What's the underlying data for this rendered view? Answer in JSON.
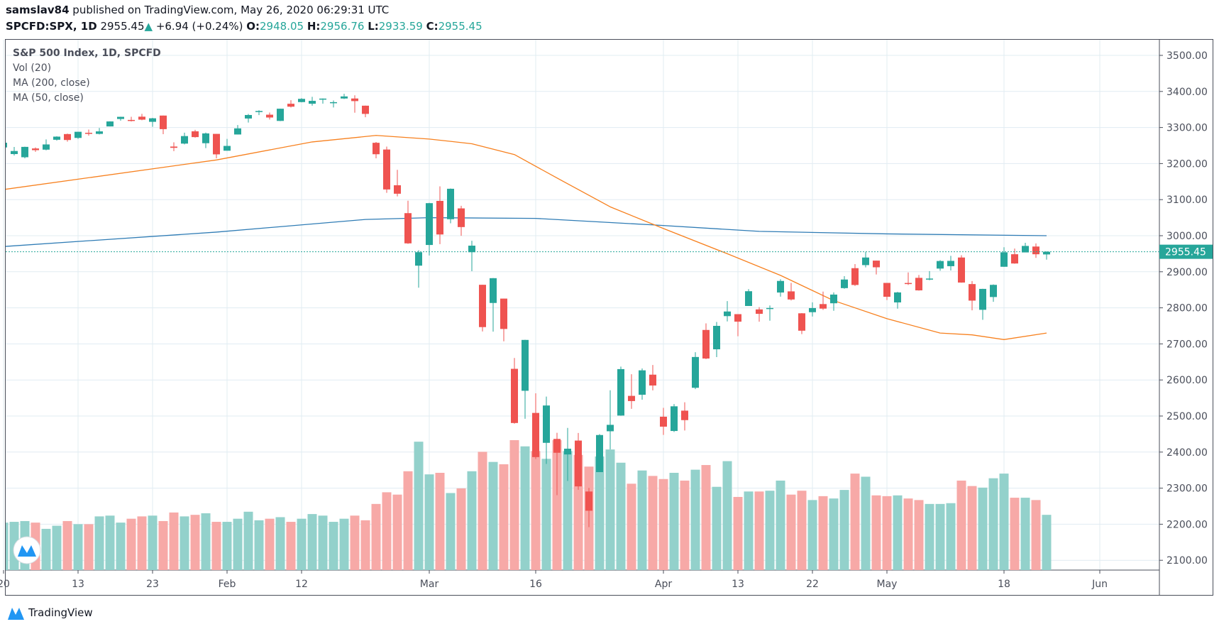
{
  "header": {
    "author": "samslav84",
    "published": " published on TradingView.com, May 26, 2020 06:29:31 UTC",
    "symbol": "SPCFD:SPX, 1D",
    "last": "2955.45",
    "change_icon": "triangle-up-icon",
    "change": "+6.94 (+0.24%)",
    "o_label": "O:",
    "o": "2948.05",
    "h_label": "H:",
    "h": "2956.76",
    "l_label": "L:",
    "l": "2933.59",
    "c_label": "C:",
    "c": "2955.45"
  },
  "legend": {
    "title": "S&P 500 Index, 1D, SPCFD",
    "vol": "Vol (20)",
    "ma200": "MA (200, close)",
    "ma50": "MA (50, close)"
  },
  "brand": {
    "name": "TradingView"
  },
  "colors": {
    "up": "#26a69a",
    "down": "#ef5350",
    "vol_up": "#93d1cb",
    "vol_down": "#f7a9a7",
    "ma200": "#2f7cb5",
    "ma50": "#f7801e",
    "grid": "#e1ecf2"
  },
  "chart_data": {
    "type": "candlestick",
    "title": "S&P 500 Index, 1D, SPCFD",
    "ylim": [
      2070,
      3560
    ],
    "y_ticks": [
      "3500.00",
      "3400.00",
      "3300.00",
      "3200.00",
      "3100.00",
      "3000.00",
      "2900.00",
      "2800.00",
      "2700.00",
      "2600.00",
      "2500.00",
      "2400.00",
      "2300.00",
      "2200.00",
      "2100.00"
    ],
    "last_price_label": "2955.45",
    "last_price": 2955.45,
    "x_labels": [
      {
        "label": "20",
        "date": "2020-01-02"
      },
      {
        "label": "13",
        "date": "2020-01-13"
      },
      {
        "label": "23",
        "date": "2020-01-23"
      },
      {
        "label": "Feb",
        "date": "2020-02-03"
      },
      {
        "label": "12",
        "date": "2020-02-12"
      },
      {
        "label": "Mar",
        "date": "2020-03-02"
      },
      {
        "label": "16",
        "date": "2020-03-16"
      },
      {
        "label": "Apr",
        "date": "2020-04-01"
      },
      {
        "label": "13",
        "date": "2020-04-13"
      },
      {
        "label": "22",
        "date": "2020-04-22"
      },
      {
        "label": "May",
        "date": "2020-05-01"
      },
      {
        "label": "18",
        "date": "2020-05-18"
      },
      {
        "label": "Jun",
        "date": "2020-06-01"
      }
    ],
    "bar_fields": [
      "date",
      "open",
      "high",
      "low",
      "close",
      "volume_relative"
    ],
    "bars": [
      [
        "2020-01-02",
        3244.67,
        3258.14,
        3235.53,
        3257.85,
        61
      ],
      [
        "2020-01-03",
        3226.36,
        3246.15,
        3222.34,
        3234.85,
        62
      ],
      [
        "2020-01-06",
        3217.55,
        3246.84,
        3214.64,
        3246.28,
        63
      ],
      [
        "2020-01-07",
        3241.86,
        3244.91,
        3232.43,
        3237.18,
        61
      ],
      [
        "2020-01-08",
        3238.59,
        3267.07,
        3236.67,
        3253.05,
        53
      ],
      [
        "2020-01-09",
        3266.03,
        3275.58,
        3263.67,
        3274.7,
        57
      ],
      [
        "2020-01-10",
        3281.81,
        3282.99,
        3260.86,
        3265.35,
        63
      ],
      [
        "2020-01-13",
        3271.13,
        3288.13,
        3268.43,
        3288.13,
        59
      ],
      [
        "2020-01-14",
        3285.35,
        3294.25,
        3277.19,
        3283.15,
        59
      ],
      [
        "2020-01-15",
        3282.27,
        3298.66,
        3280.69,
        3289.29,
        69
      ],
      [
        "2020-01-16",
        3302.97,
        3317.11,
        3302.82,
        3316.81,
        70
      ],
      [
        "2020-01-17",
        3323.66,
        3329.88,
        3318.86,
        3329.62,
        61
      ],
      [
        "2020-01-21",
        3321.03,
        3329.79,
        3316.61,
        3320.79,
        66
      ],
      [
        "2020-01-22",
        3330.02,
        3337.77,
        3320.04,
        3321.75,
        69
      ],
      [
        "2020-01-23",
        3315.77,
        3326.88,
        3301.87,
        3325.54,
        70
      ],
      [
        "2020-01-24",
        3333.1,
        3333.18,
        3281.53,
        3295.47,
        63
      ],
      [
        "2020-01-27",
        3247.16,
        3258.85,
        3234.5,
        3243.63,
        74
      ],
      [
        "2020-01-28",
        3255.35,
        3285.78,
        3253.22,
        3276.24,
        69
      ],
      [
        "2020-01-29",
        3289.46,
        3293.47,
        3271.89,
        3273.4,
        71
      ],
      [
        "2020-01-30",
        3256.45,
        3285.91,
        3242.8,
        3283.66,
        73
      ],
      [
        "2020-01-31",
        3282.33,
        3282.33,
        3214.68,
        3225.52,
        62
      ],
      [
        "2020-02-03",
        3235.66,
        3268.44,
        3235.66,
        3248.92,
        62
      ],
      [
        "2020-02-04",
        3280.61,
        3306.92,
        3280.61,
        3297.59,
        66
      ],
      [
        "2020-02-05",
        3324.91,
        3337.58,
        3313.75,
        3334.69,
        75
      ],
      [
        "2020-02-06",
        3344.92,
        3347.96,
        3334.39,
        3345.78,
        64
      ],
      [
        "2020-02-07",
        3335.54,
        3341.42,
        3322.12,
        3327.71,
        66
      ],
      [
        "2020-02-10",
        3318.28,
        3352.26,
        3317.77,
        3352.09,
        68
      ],
      [
        "2020-02-11",
        3365.87,
        3375.63,
        3355.61,
        3357.75,
        62
      ],
      [
        "2020-02-12",
        3370.5,
        3381.47,
        3369.72,
        3379.45,
        66
      ],
      [
        "2020-02-13",
        3365.9,
        3385.09,
        3360.52,
        3373.94,
        72
      ],
      [
        "2020-02-14",
        3378.08,
        3380.69,
        3366.15,
        3380.16,
        70
      ],
      [
        "2020-02-18",
        3369.04,
        3375.01,
        3355.61,
        3370.29,
        62
      ],
      [
        "2020-02-19",
        3380.39,
        3393.52,
        3378.83,
        3386.15,
        66
      ],
      [
        "2020-02-20",
        3380.45,
        3389.15,
        3341.02,
        3373.23,
        70
      ],
      [
        "2020-02-21",
        3360.5,
        3360.76,
        3328.45,
        3337.75,
        64
      ],
      [
        "2020-02-24",
        3257.61,
        3259.81,
        3214.65,
        3225.89,
        85
      ],
      [
        "2020-02-25",
        3238.94,
        3246.99,
        3118.77,
        3128.21,
        100
      ],
      [
        "2020-02-26",
        3139.9,
        3182.51,
        3108.99,
        3116.39,
        97
      ],
      [
        "2020-02-27",
        3062.54,
        3097.07,
        2977.39,
        2978.76,
        127
      ],
      [
        "2020-02-28",
        2916.9,
        2959.72,
        2855.84,
        2954.22,
        165
      ],
      [
        "2020-03-02",
        2974.28,
        3090.96,
        2945.19,
        3090.23,
        123
      ],
      [
        "2020-03-03",
        3096.46,
        3136.72,
        2976.63,
        3003.37,
        125
      ],
      [
        "2020-03-04",
        3045.75,
        3130.97,
        3034.38,
        3130.12,
        99
      ],
      [
        "2020-03-05",
        3075.7,
        3083.04,
        2999.83,
        3023.94,
        105
      ],
      [
        "2020-03-06",
        2954.2,
        2985.93,
        2901.54,
        2972.37,
        127
      ],
      [
        "2020-03-09",
        2863.89,
        2863.89,
        2734.43,
        2746.56,
        152
      ],
      [
        "2020-03-10",
        2813.48,
        2882.59,
        2734.0,
        2882.23,
        139
      ],
      [
        "2020-03-11",
        2825.6,
        2825.6,
        2707.22,
        2741.38,
        136
      ],
      [
        "2020-03-12",
        2630.86,
        2660.95,
        2478.86,
        2480.64,
        167
      ],
      [
        "2020-03-13",
        2569.99,
        2711.33,
        2492.37,
        2711.02,
        159
      ],
      [
        "2020-03-16",
        2508.59,
        2562.98,
        2380.94,
        2386.13,
        153
      ],
      [
        "2020-03-17",
        2425.66,
        2553.93,
        2367.04,
        2529.19,
        143
      ],
      [
        "2020-03-18",
        2436.5,
        2453.57,
        2280.52,
        2398.1,
        167
      ],
      [
        "2020-03-19",
        2393.48,
        2466.97,
        2319.78,
        2409.39,
        153
      ],
      [
        "2020-03-20",
        2431.94,
        2453.01,
        2295.56,
        2304.92,
        148
      ],
      [
        "2020-03-23",
        2290.71,
        2300.73,
        2191.86,
        2237.4,
        133
      ],
      [
        "2020-03-24",
        2344.44,
        2449.71,
        2344.44,
        2447.33,
        146
      ],
      [
        "2020-03-25",
        2457.77,
        2571.42,
        2407.53,
        2475.56,
        155
      ],
      [
        "2020-03-26",
        2501.29,
        2637.01,
        2500.72,
        2630.07,
        138
      ],
      [
        "2020-03-27",
        2555.87,
        2615.91,
        2520.02,
        2541.47,
        111
      ],
      [
        "2020-03-30",
        2558.98,
        2631.8,
        2545.28,
        2626.65,
        128
      ],
      [
        "2020-03-31",
        2614.69,
        2641.39,
        2571.15,
        2584.59,
        121
      ],
      [
        "2020-04-01",
        2498.08,
        2522.75,
        2447.49,
        2470.5,
        117
      ],
      [
        "2020-04-02",
        2458.54,
        2533.22,
        2455.79,
        2526.9,
        125
      ],
      [
        "2020-04-03",
        2514.92,
        2538.18,
        2459.96,
        2488.65,
        115
      ],
      [
        "2020-04-06",
        2578.28,
        2676.85,
        2574.57,
        2663.68,
        129
      ],
      [
        "2020-04-07",
        2738.65,
        2756.89,
        2657.67,
        2659.41,
        135
      ],
      [
        "2020-04-08",
        2685.0,
        2760.75,
        2663.3,
        2749.98,
        107
      ],
      [
        "2020-04-09",
        2776.99,
        2818.57,
        2762.36,
        2789.82,
        140
      ],
      [
        "2020-04-13",
        2782.46,
        2782.46,
        2721.17,
        2761.63,
        94
      ],
      [
        "2020-04-14",
        2805.1,
        2851.85,
        2805.1,
        2846.06,
        101
      ],
      [
        "2020-04-15",
        2795.64,
        2801.88,
        2761.54,
        2783.36,
        101
      ],
      [
        "2020-04-16",
        2799.34,
        2806.51,
        2764.32,
        2799.55,
        102
      ],
      [
        "2020-04-17",
        2842.43,
        2879.22,
        2830.88,
        2874.56,
        115
      ],
      [
        "2020-04-20",
        2845.62,
        2868.98,
        2820.43,
        2823.16,
        97
      ],
      [
        "2020-04-21",
        2784.81,
        2785.54,
        2727.1,
        2736.56,
        102
      ],
      [
        "2020-04-22",
        2787.89,
        2815.1,
        2775.95,
        2799.31,
        90
      ],
      [
        "2020-04-23",
        2810.42,
        2844.9,
        2794.26,
        2797.8,
        95
      ],
      [
        "2020-04-24",
        2812.64,
        2842.71,
        2791.76,
        2836.74,
        92
      ],
      [
        "2020-04-27",
        2854.65,
        2887.72,
        2852.89,
        2878.48,
        103
      ],
      [
        "2020-04-28",
        2909.96,
        2921.15,
        2860.71,
        2863.39,
        124
      ],
      [
        "2020-04-29",
        2918.46,
        2954.86,
        2912.16,
        2939.51,
        120
      ],
      [
        "2020-04-30",
        2930.91,
        2930.91,
        2892.47,
        2912.43,
        96
      ],
      [
        "2020-05-01",
        2869.09,
        2869.09,
        2821.61,
        2830.71,
        95
      ],
      [
        "2020-05-04",
        2815.01,
        2844.24,
        2797.85,
        2842.74,
        96
      ],
      [
        "2020-05-05",
        2868.88,
        2898.23,
        2863.55,
        2868.44,
        92
      ],
      [
        "2020-05-06",
        2883.14,
        2891.11,
        2847.65,
        2848.42,
        90
      ],
      [
        "2020-05-07",
        2878.26,
        2901.92,
        2876.48,
        2881.19,
        85
      ],
      [
        "2020-05-08",
        2908.83,
        2932.16,
        2902.88,
        2929.8,
        85
      ],
      [
        "2020-05-11",
        2915.46,
        2944.25,
        2903.44,
        2930.19,
        86
      ],
      [
        "2020-05-12",
        2939.5,
        2945.82,
        2869.59,
        2870.12,
        115
      ],
      [
        "2020-05-13",
        2865.86,
        2874.14,
        2793.15,
        2820.0,
        108
      ],
      [
        "2020-05-14",
        2794.54,
        2852.8,
        2766.64,
        2852.5,
        106
      ],
      [
        "2020-05-15",
        2829.95,
        2865.01,
        2816.78,
        2863.7,
        118
      ],
      [
        "2020-05-18",
        2913.86,
        2968.09,
        2913.86,
        2953.91,
        124
      ],
      [
        "2020-05-19",
        2948.59,
        2964.21,
        2922.35,
        2922.94,
        93
      ],
      [
        "2020-05-20",
        2953.63,
        2980.29,
        2953.63,
        2971.61,
        93
      ],
      [
        "2020-05-21",
        2969.95,
        2978.5,
        2938.57,
        2948.51,
        90
      ],
      [
        "2020-05-22",
        2948.05,
        2956.76,
        2933.59,
        2955.45,
        71
      ]
    ],
    "ma200": [
      [
        "2020-01-02",
        2970
      ],
      [
        "2020-01-31",
        3010
      ],
      [
        "2020-02-21",
        3045
      ],
      [
        "2020-03-02",
        3050
      ],
      [
        "2020-03-16",
        3048
      ],
      [
        "2020-03-31",
        3030
      ],
      [
        "2020-04-15",
        3012
      ],
      [
        "2020-05-01",
        3005
      ],
      [
        "2020-05-22",
        3000
      ]
    ],
    "ma50": [
      [
        "2020-01-02",
        3128
      ],
      [
        "2020-01-31",
        3210
      ],
      [
        "2020-02-13",
        3260
      ],
      [
        "2020-02-24",
        3278
      ],
      [
        "2020-03-02",
        3268
      ],
      [
        "2020-03-06",
        3255
      ],
      [
        "2020-03-12",
        3225
      ],
      [
        "2020-03-18",
        3160
      ],
      [
        "2020-03-25",
        3080
      ],
      [
        "2020-04-01",
        3020
      ],
      [
        "2020-04-09",
        2950
      ],
      [
        "2020-04-17",
        2890
      ],
      [
        "2020-04-24",
        2820
      ],
      [
        "2020-05-01",
        2770
      ],
      [
        "2020-05-08",
        2730
      ],
      [
        "2020-05-13",
        2725
      ],
      [
        "2020-05-18",
        2712
      ],
      [
        "2020-05-22",
        2730
      ]
    ]
  }
}
